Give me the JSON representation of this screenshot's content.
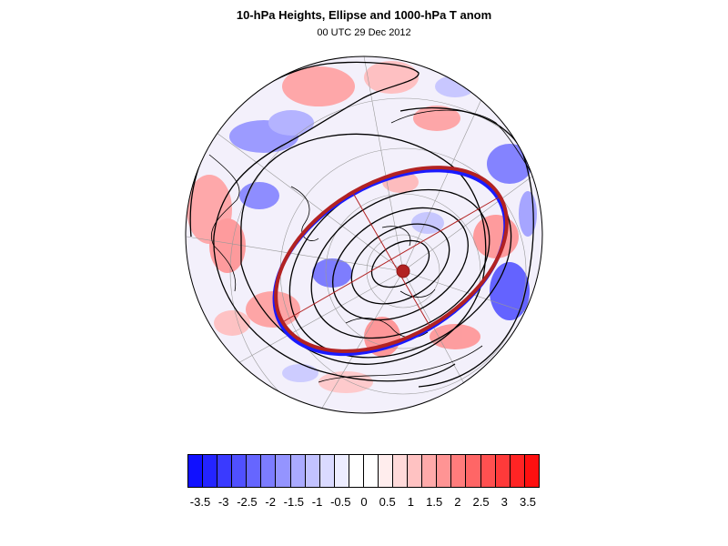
{
  "header": {
    "title": "10-hPa Heights, Ellipse and 1000-hPa T anom",
    "subtitle": "00 UTC 29 Dec 2012"
  },
  "colorbar": {
    "colors": [
      "#1010ff",
      "#2424ff",
      "#3a3aff",
      "#5050ff",
      "#6666ff",
      "#7c7cff",
      "#9494ff",
      "#aaaaff",
      "#c2c2ff",
      "#dadaff",
      "#ededff",
      "#ffffff",
      "#ffffff",
      "#ffeded",
      "#ffdada",
      "#ffc2c2",
      "#ffaaaa",
      "#ff9494",
      "#ff7c7c",
      "#ff6666",
      "#ff5050",
      "#ff3a3a",
      "#ff2424",
      "#ff1010"
    ],
    "labels": [
      "-3.5",
      "-3",
      "-2.5",
      "-2",
      "-1.5",
      "-1",
      "-0.5",
      "0",
      "0.5",
      "1",
      "1.5",
      "2",
      "2.5",
      "3",
      "3.5"
    ]
  },
  "map": {
    "projection": "polar-stereographic",
    "hemisphere": "north",
    "colors": {
      "ellipse_red": "#b22222",
      "ellipse_blue": "#1a1aff",
      "contour": "#000000",
      "coast": "#000000",
      "grid": "#888888"
    }
  }
}
